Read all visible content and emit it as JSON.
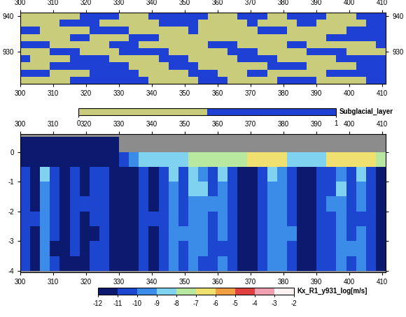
{
  "chart_data": [
    {
      "type": "heatmap",
      "xlim": [
        300,
        411
      ],
      "xticks": [
        300,
        310,
        320,
        330,
        340,
        350,
        360,
        370,
        380,
        390,
        400,
        410
      ],
      "ylim": [
        921,
        941
      ],
      "yticks": [
        930,
        940
      ],
      "x_edges": [
        300,
        303,
        306,
        309,
        312,
        315,
        318,
        321,
        324,
        327,
        330,
        333,
        336,
        339,
        342,
        345,
        348,
        351,
        354,
        357,
        360,
        363,
        366,
        369,
        372,
        375,
        378,
        381,
        384,
        387,
        390,
        393,
        396,
        399,
        402,
        405,
        408,
        411
      ],
      "y_edges": [
        921,
        923,
        925,
        927,
        929,
        931,
        933,
        935,
        937,
        939,
        941
      ],
      "cells": [
        [
          0,
          0,
          0,
          0,
          0,
          1,
          1,
          1,
          1,
          1,
          1,
          1,
          1,
          0,
          0,
          0,
          0,
          0,
          1,
          1,
          1,
          0,
          0,
          0,
          0,
          0,
          1,
          1,
          1,
          1,
          0,
          0,
          0,
          0,
          0,
          1,
          1
        ],
        [
          1,
          1,
          1,
          0,
          0,
          0,
          0,
          1,
          1,
          1,
          1,
          1,
          0,
          0,
          0,
          0,
          0,
          1,
          1,
          1,
          0,
          0,
          0,
          1,
          1,
          0,
          0,
          0,
          0,
          0,
          0,
          1,
          1,
          1,
          1,
          1,
          1
        ],
        [
          0,
          0,
          0,
          1,
          1,
          1,
          1,
          1,
          1,
          1,
          1,
          0,
          0,
          0,
          0,
          1,
          1,
          1,
          0,
          0,
          0,
          0,
          0,
          0,
          0,
          1,
          1,
          1,
          1,
          0,
          0,
          0,
          0,
          0,
          1,
          1,
          1
        ],
        [
          1,
          0,
          0,
          0,
          0,
          1,
          1,
          1,
          1,
          0,
          0,
          0,
          0,
          0,
          1,
          1,
          1,
          0,
          0,
          0,
          0,
          0,
          1,
          1,
          1,
          1,
          0,
          0,
          0,
          0,
          0,
          0,
          1,
          1,
          1,
          1,
          1
        ],
        [
          0,
          0,
          0,
          1,
          1,
          1,
          0,
          0,
          0,
          0,
          1,
          1,
          1,
          1,
          1,
          0,
          0,
          0,
          0,
          0,
          0,
          1,
          1,
          1,
          0,
          0,
          0,
          0,
          0,
          1,
          1,
          1,
          1,
          0,
          0,
          0,
          0
        ],
        [
          1,
          1,
          1,
          0,
          0,
          0,
          0,
          0,
          0,
          1,
          1,
          1,
          0,
          0,
          0,
          0,
          0,
          0,
          0,
          1,
          1,
          1,
          0,
          0,
          0,
          0,
          0,
          1,
          1,
          0,
          0,
          0,
          0,
          0,
          0,
          0,
          1
        ],
        [
          0,
          0,
          0,
          0,
          0,
          1,
          1,
          0,
          0,
          0,
          0,
          1,
          1,
          1,
          0,
          0,
          0,
          0,
          0,
          0,
          0,
          0,
          0,
          0,
          0,
          0,
          0,
          0,
          0,
          0,
          0,
          1,
          1,
          1,
          1,
          1,
          1
        ],
        [
          1,
          1,
          0,
          0,
          0,
          0,
          0,
          1,
          1,
          1,
          1,
          0,
          0,
          0,
          0,
          0,
          0,
          1,
          0,
          0,
          0,
          0,
          0,
          0,
          1,
          1,
          1,
          0,
          0,
          0,
          0,
          0,
          0,
          1,
          1,
          1,
          1
        ],
        [
          0,
          0,
          0,
          0,
          1,
          1,
          1,
          1,
          0,
          0,
          0,
          0,
          0,
          0,
          1,
          1,
          1,
          1,
          0,
          0,
          0,
          0,
          0,
          1,
          0,
          0,
          0,
          0,
          1,
          1,
          0,
          0,
          0,
          0,
          0,
          1,
          1
        ],
        [
          0,
          0,
          0,
          0,
          0,
          0,
          1,
          1,
          1,
          1,
          0,
          0,
          0,
          1,
          1,
          1,
          1,
          1,
          1,
          0,
          0,
          0,
          1,
          1,
          1,
          0,
          0,
          1,
          1,
          1,
          1,
          0,
          0,
          0,
          1,
          1,
          1
        ]
      ],
      "colors": [
        "#c9cc7a",
        "#1f40d4"
      ],
      "colorbar": {
        "label": "Subglacial_layer",
        "range": [
          0,
          1
        ],
        "boundaries": [
          0,
          0.5,
          1
        ],
        "ticks": [
          0,
          1
        ]
      }
    },
    {
      "type": "heatmap",
      "xlim": [
        300,
        411
      ],
      "xticks": [
        300,
        310,
        320,
        330,
        340,
        350,
        360,
        370,
        380,
        390,
        400,
        410
      ],
      "ylim": [
        -4.05,
        0.6
      ],
      "yticks": [
        -4,
        -3,
        -2,
        -1,
        0
      ],
      "x_edges": [
        300,
        303,
        306,
        309,
        312,
        315,
        318,
        321,
        324,
        327,
        330,
        333,
        336,
        339,
        342,
        345,
        348,
        351,
        354,
        357,
        360,
        363,
        366,
        369,
        372,
        375,
        378,
        381,
        384,
        387,
        390,
        393,
        396,
        399,
        402,
        405,
        408,
        411
      ],
      "y_edges": [
        -4,
        -3.5,
        -3,
        -2.5,
        -2,
        -1.5,
        -1,
        -0.5,
        0,
        0.5
      ],
      "cells": [
        [
          -10.5,
          -11.5,
          -9.5,
          -10.5,
          -11.5,
          -11.5,
          -11.5,
          -10.5,
          -10.5,
          -11.5,
          -11.5,
          -11.5,
          -10.5,
          -11.5,
          -10.5,
          -9.5,
          -10.5,
          -9.5,
          -10.5,
          -10.5,
          -9.5,
          -10.5,
          -11.5,
          -11.5,
          -10.5,
          -9.5,
          -9.5,
          -10.5,
          -11.5,
          -11.5,
          -10.5,
          -10.5,
          -9.5,
          -10.5,
          -9.5,
          -10.5,
          -11.5
        ],
        [
          -10.5,
          -11.5,
          -9.5,
          -11.5,
          -11.5,
          -10.5,
          -11.5,
          -10.5,
          -10.5,
          -11.5,
          -11.5,
          -11.5,
          -10.5,
          -11.5,
          -10.5,
          -9.5,
          -10.5,
          -9.5,
          -9.5,
          -10.5,
          -10.5,
          -10.5,
          -11.5,
          -11.5,
          -10.5,
          -9.5,
          -9.5,
          -10.5,
          -11.5,
          -11.5,
          -10.5,
          -10.5,
          -9.5,
          -9.5,
          -9.5,
          -10.5,
          -11.5
        ],
        [
          -10.5,
          -11.5,
          -9.5,
          -10.5,
          -11.5,
          -10.5,
          -11.5,
          -11.5,
          -10.5,
          -11.5,
          -11.5,
          -11.5,
          -10.5,
          -11.5,
          -10.5,
          -9.5,
          -9.5,
          -9.5,
          -9.5,
          -10.5,
          -9.5,
          -10.5,
          -11.5,
          -11.5,
          -10.5,
          -9.5,
          -9.5,
          -9.5,
          -11.5,
          -11.5,
          -10.5,
          -10.5,
          -9.5,
          -10.5,
          -9.5,
          -10.5,
          -11.5
        ],
        [
          -10.5,
          -10.5,
          -9.5,
          -10.5,
          -11.5,
          -10.5,
          -11.5,
          -10.5,
          -10.5,
          -11.5,
          -11.5,
          -11.5,
          -10.5,
          -10.5,
          -10.5,
          -9.5,
          -10.5,
          -9.5,
          -9.5,
          -10.5,
          -9.5,
          -10.5,
          -11.5,
          -11.5,
          -10.5,
          -9.5,
          -9.5,
          -10.5,
          -11.5,
          -11.5,
          -10.5,
          -10.5,
          -9.5,
          -10.5,
          -10.5,
          -10.5,
          -11.5
        ],
        [
          -10.5,
          -11.5,
          -9.5,
          -10.5,
          -11.5,
          -10.5,
          -10.5,
          -10.5,
          -10.5,
          -11.5,
          -11.5,
          -11.5,
          -10.5,
          -11.5,
          -10.5,
          -9.5,
          -10.5,
          -9.5,
          -9.5,
          -9.5,
          -9.5,
          -10.5,
          -11.5,
          -11.5,
          -10.5,
          -9.5,
          -9.5,
          -10.5,
          -11.5,
          -11.5,
          -10.5,
          -9.5,
          -9.5,
          -10.5,
          -9.5,
          -10.5,
          -11.5
        ],
        [
          -10.5,
          -11.5,
          -9.5,
          -10.5,
          -11.5,
          -10.5,
          -11.5,
          -10.5,
          -10.5,
          -11.5,
          -11.5,
          -11.5,
          -10.5,
          -11.5,
          -10.5,
          -9.5,
          -10.5,
          -8.5,
          -8.5,
          -10.5,
          -9.5,
          -10.5,
          -11.5,
          -11.5,
          -10.5,
          -9.5,
          -9.5,
          -10.5,
          -11.5,
          -11.5,
          -10.5,
          -10.5,
          -8.5,
          -10.5,
          -9.5,
          -10.5,
          -11.5
        ],
        [
          -10.5,
          -11.5,
          -8.5,
          -10.5,
          -11.5,
          -10.5,
          -11.5,
          -10.5,
          -10.5,
          -11.5,
          -11.5,
          -11.5,
          -10.5,
          -11.5,
          -10.5,
          -8.5,
          -10.5,
          -8.5,
          -9.5,
          -10.5,
          -8.5,
          -10.5,
          -11.5,
          -11.5,
          -10.5,
          -8.5,
          -9.5,
          -10.5,
          -11.5,
          -11.5,
          -10.5,
          -10.5,
          -9.5,
          -10.5,
          -8.5,
          -10.5,
          -11.5
        ],
        [
          -11.5,
          -11.5,
          -11.5,
          -11.5,
          -11.5,
          -11.5,
          -11.5,
          -11.5,
          -11.5,
          -11.5,
          -10.5,
          -9.5,
          -8.5,
          -8.5,
          -8.5,
          -8.5,
          -8.5,
          -7.5,
          -7.5,
          -7.5,
          -7.5,
          -7.5,
          -7.5,
          -6.5,
          -6.5,
          -6.5,
          -6.5,
          -8.5,
          -8.5,
          -8.5,
          -8.5,
          -6.5,
          -6.5,
          -6.5,
          -6.5,
          -6.5,
          -7.5
        ],
        [
          -11.5,
          -11.5,
          -11.5,
          -11.5,
          -11.5,
          -11.5,
          -11.5,
          -11.5,
          -11.5,
          -11.5,
          null,
          null,
          null,
          null,
          null,
          null,
          null,
          null,
          null,
          null,
          null,
          null,
          null,
          null,
          null,
          null,
          null,
          null,
          null,
          null,
          null,
          null,
          null,
          null,
          null,
          null,
          null
        ]
      ],
      "colors": [
        "#0b1a6e",
        "#1c45d0",
        "#3a8ce8",
        "#7fd3f0",
        "#b8e8a0",
        "#f0e070",
        "#f0a040",
        "#e04040",
        "#f0a0b0",
        "#fff2f2"
      ],
      "colorbar": {
        "label": "Kx_R1_y931_log[m/s]",
        "range": [
          -12,
          -2
        ],
        "boundaries": [
          -12,
          -11,
          -10,
          -9,
          -8,
          -7,
          -6,
          -5,
          -4,
          -3,
          -2
        ],
        "ticks": [
          -12,
          -11,
          -10,
          -9,
          -8,
          -7,
          -6,
          -5,
          -4,
          -3,
          -2
        ]
      }
    }
  ]
}
